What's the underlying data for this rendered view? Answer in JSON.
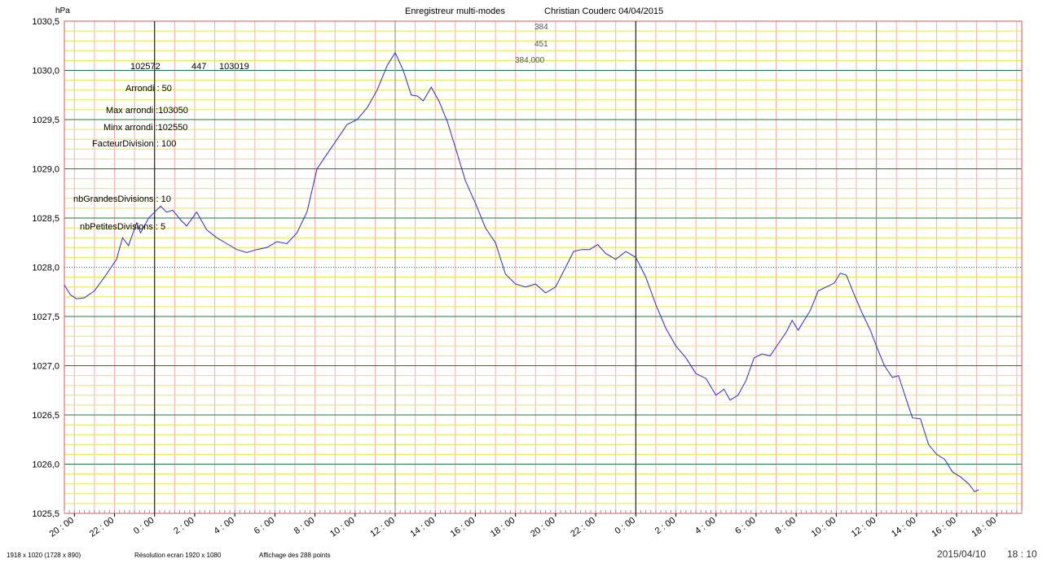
{
  "header": {
    "unit": "hPa",
    "title": "Enregistreur multi-modes",
    "author_date": "Christian Couderc  04/04/2015",
    "readout_1": "384",
    "readout_2": "451",
    "readout_3": "384,000"
  },
  "info_panel": {
    "line1_a": "102572",
    "line1_b": "447",
    "line1_c": "103019",
    "arrondi": "Arrondi :  50",
    "max_arrondi": "Max arrondi :103050",
    "min_arrondi": "Minx arrondi :102550",
    "facteur": "FacteurDivision :     100",
    "grandes": "nbGrandesDivisions :  10",
    "petites": "nbPetitesDivisions :    5"
  },
  "footer": {
    "screen_size": "1918 x 1020   (1728 x 890)",
    "resolution": "Résolution ecran 1920 x 1080",
    "points": "Affichage des 288 points",
    "date": "2015/04/10",
    "time": "18 : 10"
  },
  "colors": {
    "line": "#2a2ad8",
    "border": "#e05050",
    "major_grid": "#1d7a3a",
    "minor_grid": "#e6e64a",
    "vgrid": "#f0b0b0",
    "day_marker": "#000000",
    "noon_marker": "#888888"
  },
  "chart_data": {
    "type": "line",
    "title": "Enregistreur multi-modes",
    "xlabel": "",
    "ylabel": "hPa",
    "ylim": [
      1025.5,
      1030.5
    ],
    "yticks": [
      "1030,5",
      "1030,0",
      "1029,5",
      "1029,0",
      "1028,5",
      "1028,0",
      "1027,5",
      "1027,0",
      "1026,5",
      "1026,0",
      "1025,5"
    ],
    "x_unit": "hours since the first plotted point",
    "xlim": [
      0,
      47.75
    ],
    "xticks": [
      {
        "x": 0.5,
        "label": "20 : 00"
      },
      {
        "x": 2.5,
        "label": "22 : 00"
      },
      {
        "x": 4.5,
        "label": "0 : 00"
      },
      {
        "x": 6.5,
        "label": "2 : 00"
      },
      {
        "x": 8.5,
        "label": "4 : 00"
      },
      {
        "x": 10.5,
        "label": "6 : 00"
      },
      {
        "x": 12.5,
        "label": "8 : 00"
      },
      {
        "x": 14.5,
        "label": "10 : 00"
      },
      {
        "x": 16.5,
        "label": "12 : 00"
      },
      {
        "x": 18.5,
        "label": "14 : 00"
      },
      {
        "x": 20.5,
        "label": "16 : 00"
      },
      {
        "x": 22.5,
        "label": "18 : 00"
      },
      {
        "x": 24.5,
        "label": "20 : 00"
      },
      {
        "x": 26.5,
        "label": "22 : 00"
      },
      {
        "x": 28.5,
        "label": "0 : 00"
      },
      {
        "x": 30.5,
        "label": "2 : 00"
      },
      {
        "x": 32.5,
        "label": "4 : 00"
      },
      {
        "x": 34.5,
        "label": "6 : 00"
      },
      {
        "x": 36.5,
        "label": "8 : 00"
      },
      {
        "x": 38.5,
        "label": "10 : 00"
      },
      {
        "x": 40.5,
        "label": "12 : 00"
      },
      {
        "x": 42.5,
        "label": "14 : 00"
      },
      {
        "x": 44.5,
        "label": "16 : 00"
      },
      {
        "x": 46.5,
        "label": "18 : 00"
      }
    ],
    "day_markers": [
      4.5,
      28.5
    ],
    "noon_markers": [
      16.5,
      40.5
    ],
    "series": [
      {
        "points": [
          [
            0.0,
            1027.82
          ],
          [
            0.3,
            1027.72
          ],
          [
            0.6,
            1027.68
          ],
          [
            1.0,
            1027.69
          ],
          [
            1.5,
            1027.76
          ],
          [
            2.0,
            1027.9
          ],
          [
            2.6,
            1028.08
          ],
          [
            2.9,
            1028.3
          ],
          [
            3.2,
            1028.22
          ],
          [
            3.6,
            1028.45
          ],
          [
            3.8,
            1028.35
          ],
          [
            4.2,
            1028.5
          ],
          [
            4.5,
            1028.56
          ],
          [
            4.8,
            1028.62
          ],
          [
            5.1,
            1028.56
          ],
          [
            5.4,
            1028.58
          ],
          [
            5.8,
            1028.48
          ],
          [
            6.1,
            1028.42
          ],
          [
            6.6,
            1028.56
          ],
          [
            7.1,
            1028.38
          ],
          [
            7.6,
            1028.3
          ],
          [
            8.1,
            1028.24
          ],
          [
            8.6,
            1028.18
          ],
          [
            9.1,
            1028.15
          ],
          [
            9.6,
            1028.18
          ],
          [
            10.1,
            1028.2
          ],
          [
            10.6,
            1028.26
          ],
          [
            11.1,
            1028.24
          ],
          [
            11.6,
            1028.35
          ],
          [
            12.1,
            1028.56
          ],
          [
            12.6,
            1029.0
          ],
          [
            13.1,
            1029.15
          ],
          [
            13.6,
            1029.3
          ],
          [
            14.1,
            1029.45
          ],
          [
            14.6,
            1029.5
          ],
          [
            15.1,
            1029.62
          ],
          [
            15.6,
            1029.8
          ],
          [
            16.1,
            1030.05
          ],
          [
            16.5,
            1030.18
          ],
          [
            16.9,
            1030.0
          ],
          [
            17.3,
            1029.75
          ],
          [
            17.6,
            1029.74
          ],
          [
            17.9,
            1029.69
          ],
          [
            18.3,
            1029.83
          ],
          [
            18.7,
            1029.68
          ],
          [
            19.1,
            1029.48
          ],
          [
            19.6,
            1029.15
          ],
          [
            20.0,
            1028.88
          ],
          [
            20.5,
            1028.65
          ],
          [
            21.0,
            1028.4
          ],
          [
            21.5,
            1028.25
          ],
          [
            22.0,
            1027.93
          ],
          [
            22.5,
            1027.83
          ],
          [
            23.0,
            1027.8
          ],
          [
            23.5,
            1027.83
          ],
          [
            24.0,
            1027.74
          ],
          [
            24.5,
            1027.8
          ],
          [
            25.0,
            1028.0
          ],
          [
            25.4,
            1028.16
          ],
          [
            25.8,
            1028.18
          ],
          [
            26.2,
            1028.18
          ],
          [
            26.6,
            1028.23
          ],
          [
            27.0,
            1028.14
          ],
          [
            27.5,
            1028.08
          ],
          [
            28.0,
            1028.16
          ],
          [
            28.5,
            1028.1
          ],
          [
            29.0,
            1027.9
          ],
          [
            29.5,
            1027.62
          ],
          [
            30.0,
            1027.38
          ],
          [
            30.5,
            1027.2
          ],
          [
            31.0,
            1027.08
          ],
          [
            31.5,
            1026.92
          ],
          [
            32.0,
            1026.87
          ],
          [
            32.5,
            1026.7
          ],
          [
            32.9,
            1026.76
          ],
          [
            33.2,
            1026.65
          ],
          [
            33.6,
            1026.7
          ],
          [
            34.0,
            1026.85
          ],
          [
            34.4,
            1027.08
          ],
          [
            34.8,
            1027.12
          ],
          [
            35.2,
            1027.1
          ],
          [
            35.6,
            1027.22
          ],
          [
            36.0,
            1027.34
          ],
          [
            36.3,
            1027.46
          ],
          [
            36.6,
            1027.36
          ],
          [
            36.9,
            1027.46
          ],
          [
            37.2,
            1027.56
          ],
          [
            37.6,
            1027.76
          ],
          [
            38.0,
            1027.8
          ],
          [
            38.4,
            1027.84
          ],
          [
            38.7,
            1027.94
          ],
          [
            39.0,
            1027.92
          ],
          [
            39.4,
            1027.72
          ],
          [
            39.8,
            1027.53
          ],
          [
            40.2,
            1027.36
          ],
          [
            40.5,
            1027.2
          ],
          [
            40.9,
            1027.0
          ],
          [
            41.3,
            1026.88
          ],
          [
            41.6,
            1026.9
          ],
          [
            42.0,
            1026.65
          ],
          [
            42.3,
            1026.47
          ],
          [
            42.7,
            1026.46
          ],
          [
            43.1,
            1026.2
          ],
          [
            43.5,
            1026.1
          ],
          [
            43.9,
            1026.05
          ],
          [
            44.3,
            1025.92
          ],
          [
            44.7,
            1025.87
          ],
          [
            45.1,
            1025.8
          ],
          [
            45.4,
            1025.72
          ],
          [
            45.6,
            1025.74
          ]
        ]
      }
    ]
  }
}
